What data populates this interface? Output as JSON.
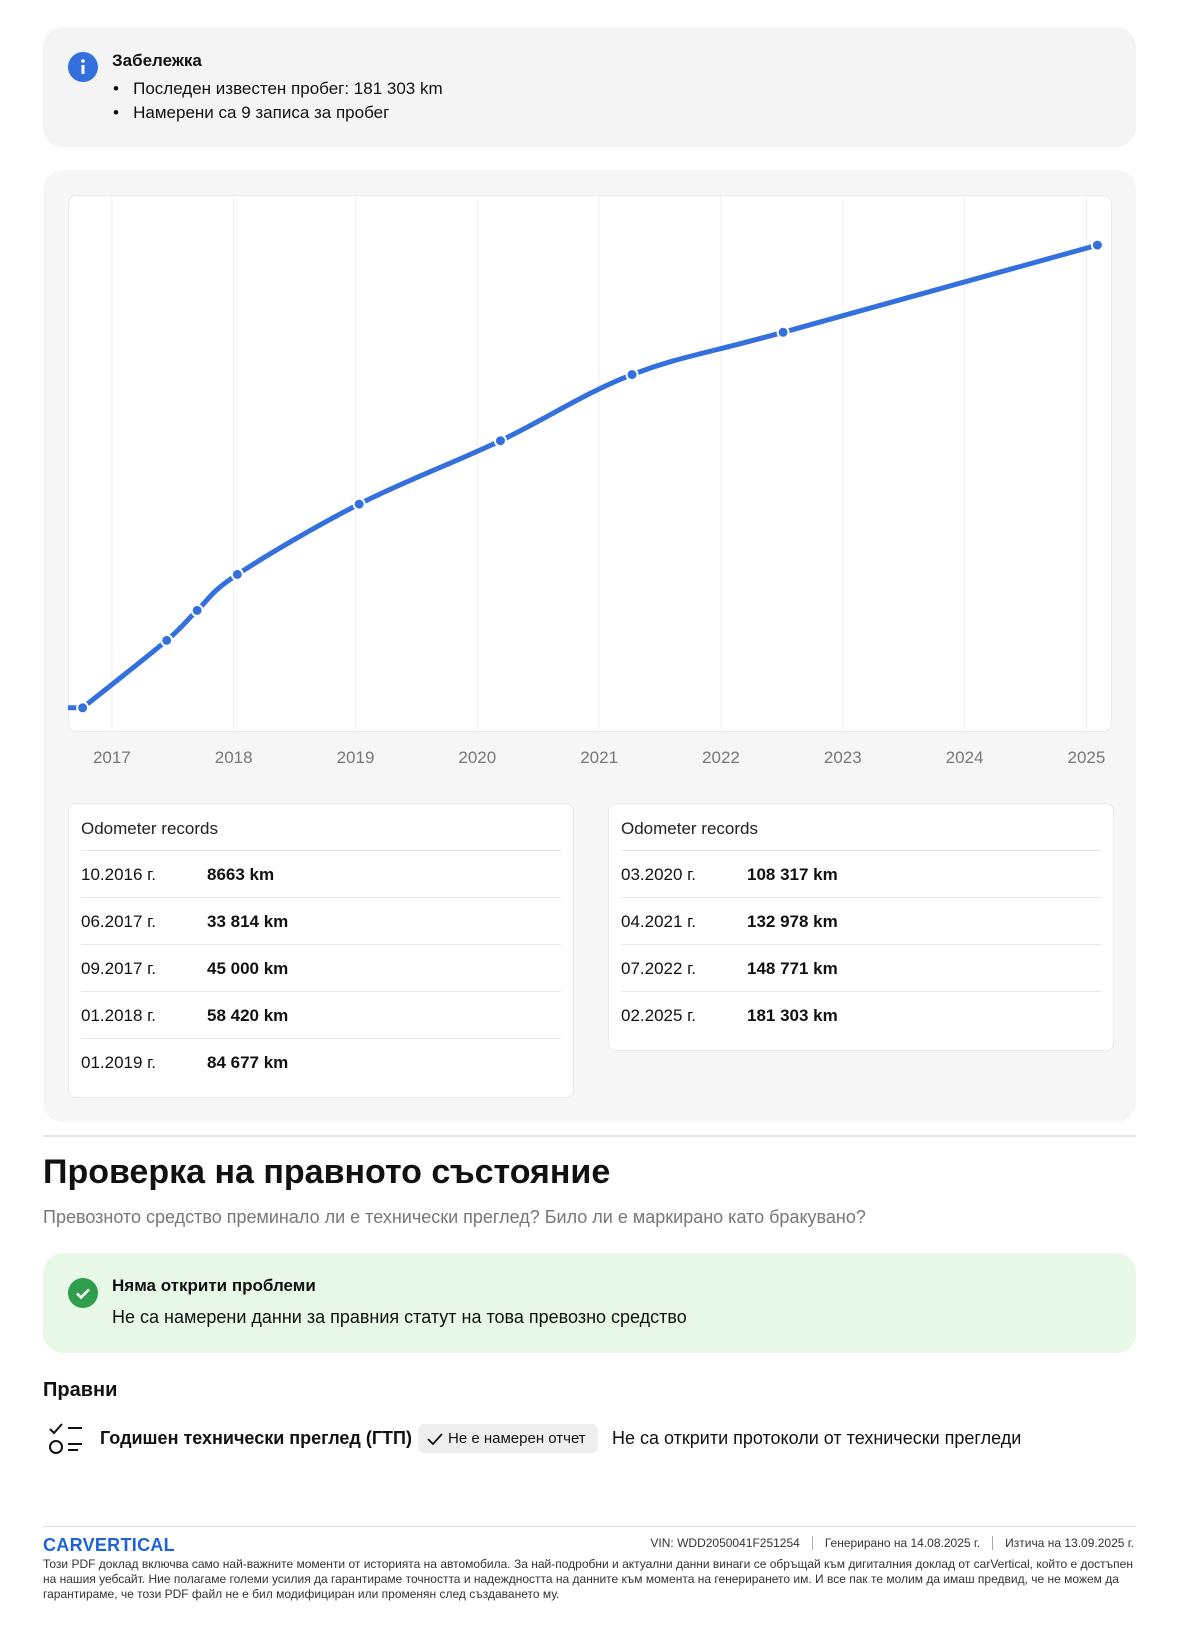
{
  "note": {
    "title": "Забележка",
    "items": [
      "Последен известен пробег: 181 303 km",
      "Намерени са 9 записа за пробег"
    ]
  },
  "chart_data": {
    "type": "line",
    "color": "#3370de",
    "x": [
      2016.76,
      2017.45,
      2017.7,
      2018.03,
      2019.03,
      2020.19,
      2021.27,
      2022.51,
      2025.09
    ],
    "values": [
      8663,
      33814,
      45000,
      58420,
      84677,
      108317,
      132978,
      148771,
      181303
    ],
    "xlim": [
      2016.64,
      2025.21
    ],
    "xticks": [
      2017,
      2018,
      2019,
      2020,
      2021,
      2022,
      2023,
      2024,
      2025
    ],
    "ylim": [
      0,
      200000
    ],
    "grid": true
  },
  "odometer_tables": [
    {
      "title": "Odometer records",
      "rows": [
        {
          "date": "10.2016 г.",
          "mileage": "8663 km"
        },
        {
          "date": "06.2017 г.",
          "mileage": "33 814 km"
        },
        {
          "date": "09.2017 г.",
          "mileage": "45 000 km"
        },
        {
          "date": "01.2018 г.",
          "mileage": "58 420 km"
        },
        {
          "date": "01.2019 г.",
          "mileage": "84 677 km"
        }
      ]
    },
    {
      "title": "Odometer records",
      "rows": [
        {
          "date": "03.2020 г.",
          "mileage": "108 317 km"
        },
        {
          "date": "04.2021 г.",
          "mileage": "132 978 km"
        },
        {
          "date": "07.2022 г.",
          "mileage": "148 771 km"
        },
        {
          "date": "02.2025 г.",
          "mileage": "181 303 km"
        }
      ]
    }
  ],
  "legal": {
    "title": "Проверка на правното състояние",
    "subtitle": "Превозното средство преминало ли е технически преглед? Било ли е маркирано като бракувано?",
    "status_title": "Няма открити проблеми",
    "status_text": "Не са намерени данни за правния статут на това превозно средство",
    "section": "Правни",
    "item_label": "Годишен технически преглед (ГТП)",
    "item_badge": "Не е намерен отчет",
    "item_text": "Не са открити протоколи от технически прегледи"
  },
  "footer": {
    "logo": "CARVERTICAL",
    "vin": "VIN:  WDD2050041F251254",
    "generated": "Генерирано на  14.08.2025 г.",
    "expires": "Изтича на  13.09.2025 г.",
    "disclaimer": "Този PDF доклад включва само най-важните моменти от историята на автомобила. За най-подробни и актуални данни винаги се обръщай към дигиталния доклад от carVertical, който е достъпен на нашия уебсайт. Ние полагаме големи усилия да гарантираме точността и надеждността на данните към момента на генерирането им. И все пак те молим да имаш предвид, че не можем да гарантираме, че този PDF файл не е бил модифициран или променян след създаването му."
  }
}
